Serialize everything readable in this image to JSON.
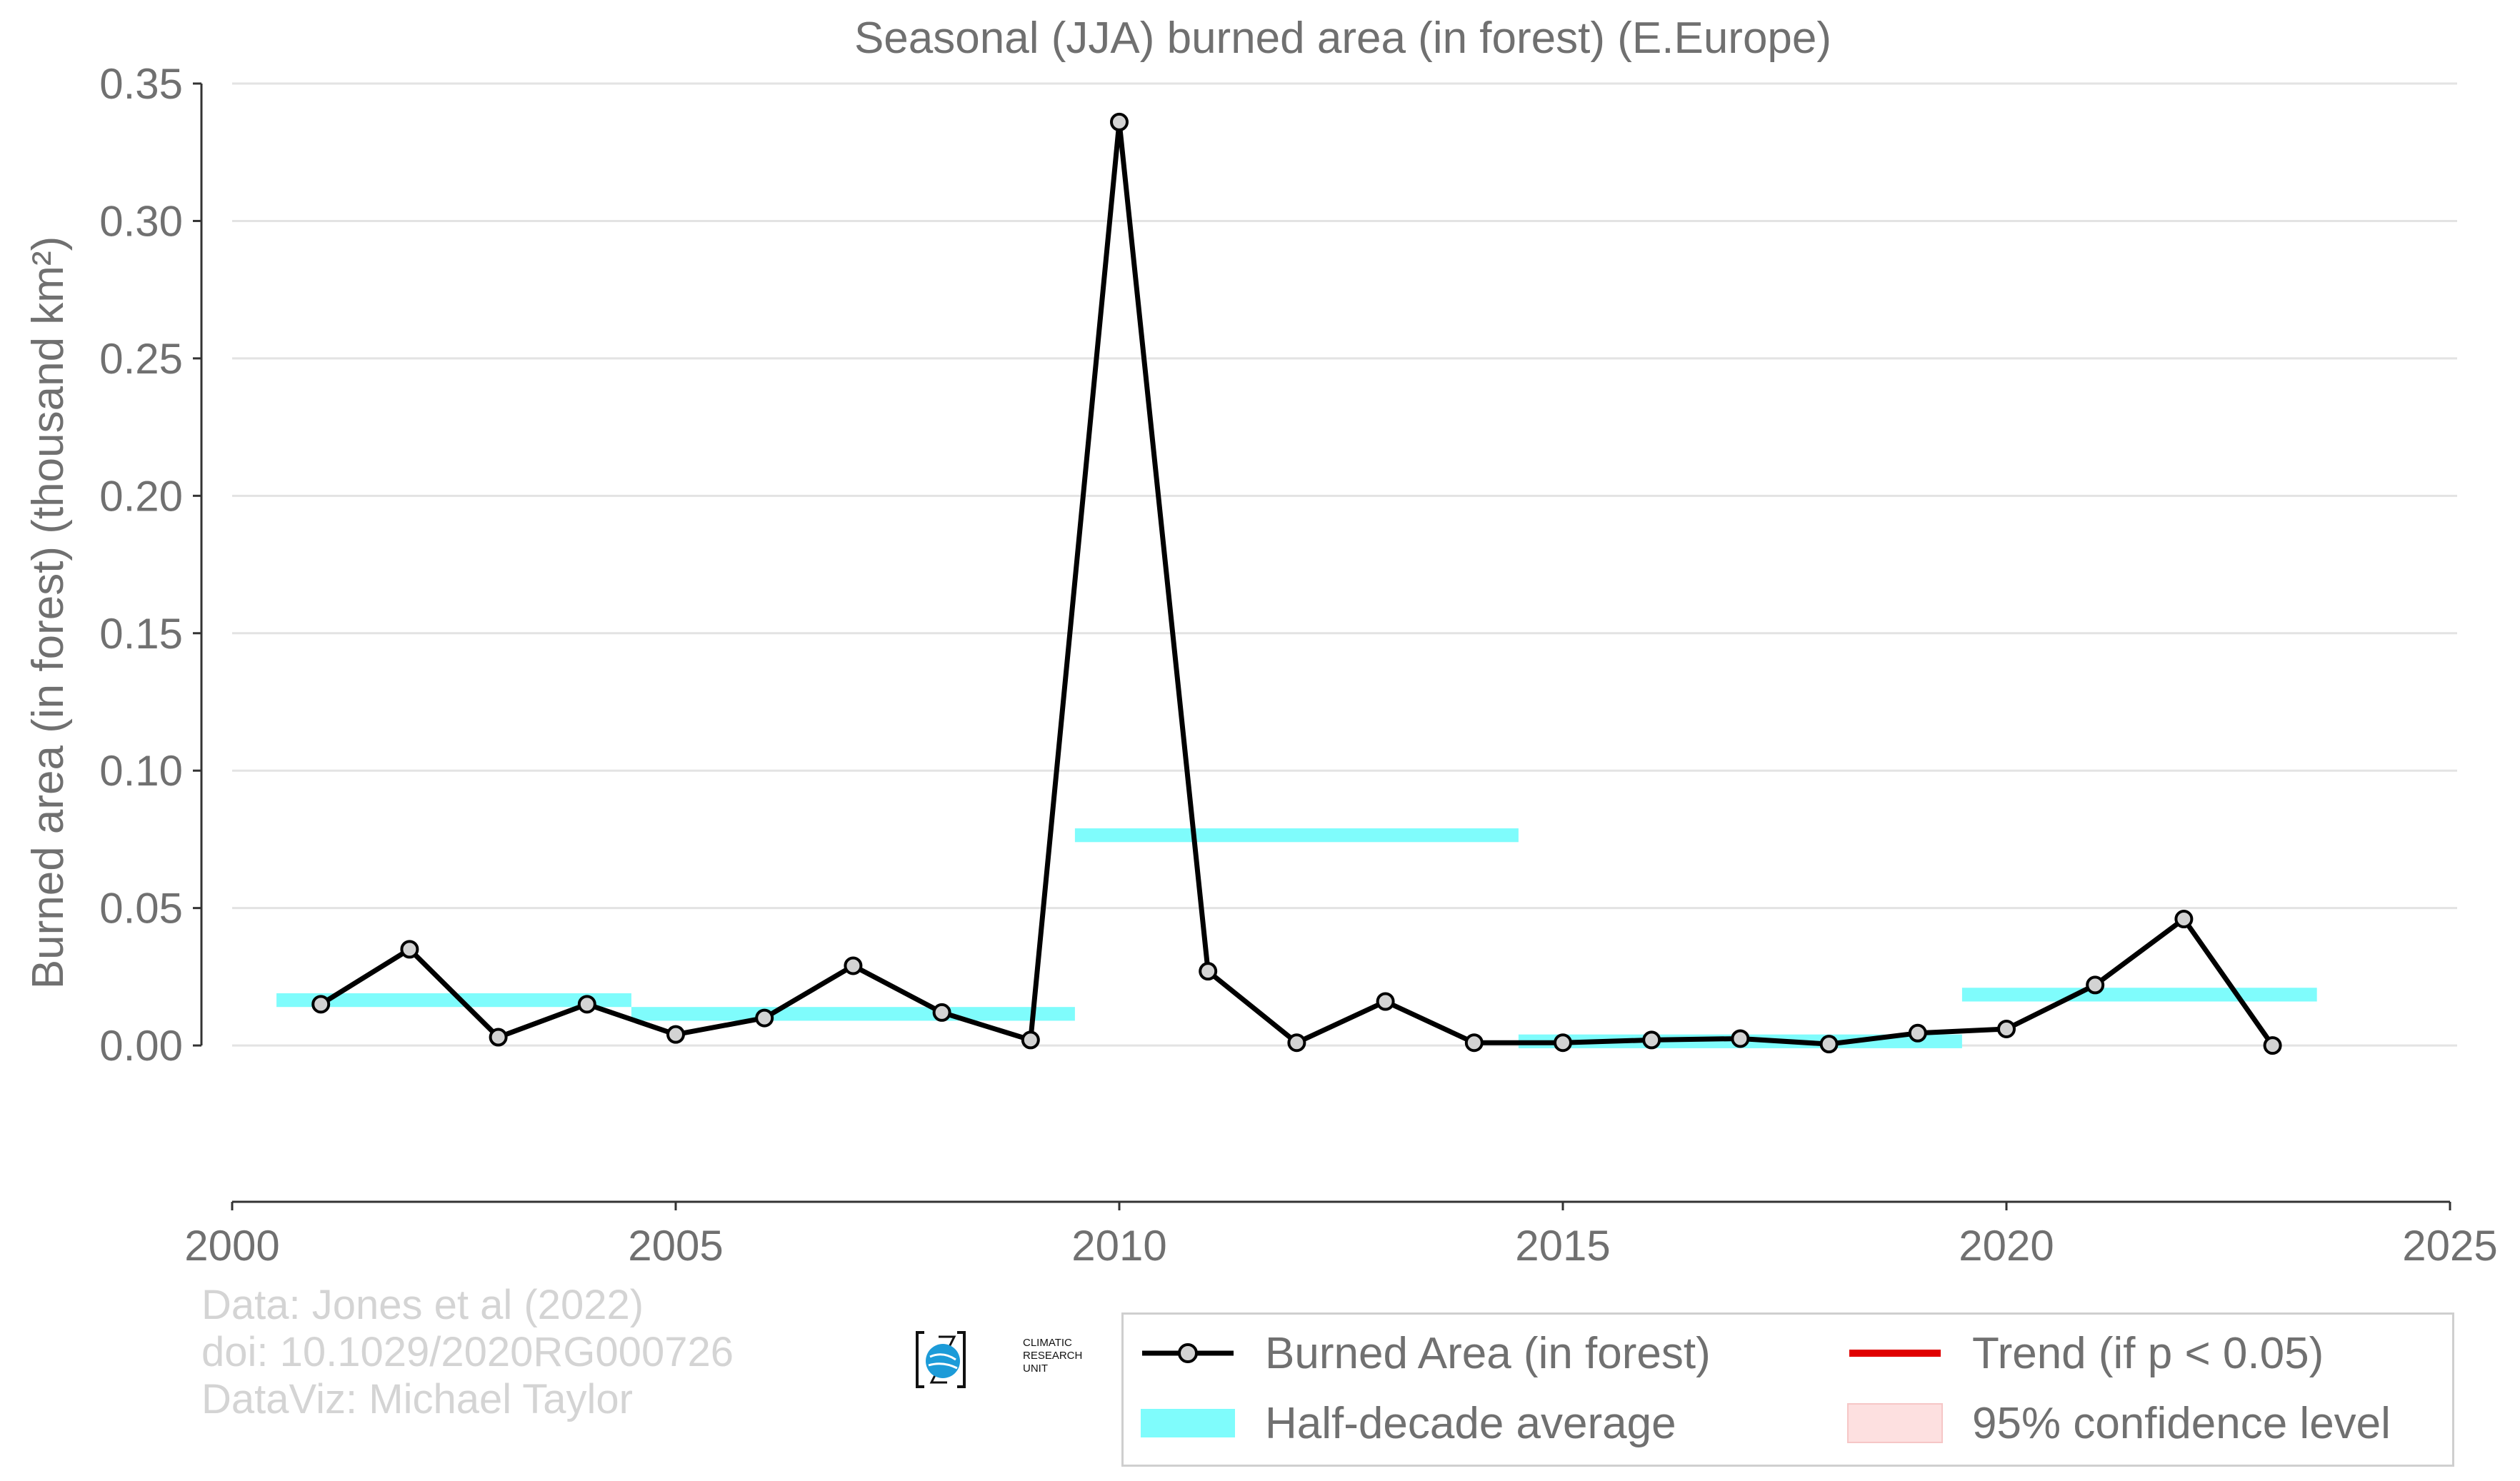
{
  "chart_data": {
    "type": "line",
    "title": "Seasonal (JJA) burned area (in forest) (E.Europe)",
    "ylabel": "Burned area (in forest) (thousand km²)",
    "xlabel": "",
    "xlim": [
      2000,
      2025
    ],
    "ylim": [
      -0.027,
      0.35
    ],
    "x_ticks": [
      2000,
      2005,
      2010,
      2015,
      2020,
      2025
    ],
    "y_ticks": [
      0.0,
      0.05,
      0.1,
      0.15,
      0.2,
      0.25,
      0.3,
      0.35
    ],
    "y_tick_labels": [
      "0.00",
      "0.05",
      "0.10",
      "0.15",
      "0.20",
      "0.25",
      "0.30",
      "0.35"
    ],
    "grid": "horizontal",
    "series": [
      {
        "name": "Burned Area (in forest)",
        "color": "#000000",
        "marker_fill": "#d3d3d3",
        "x": [
          2001,
          2002,
          2003,
          2004,
          2005,
          2006,
          2007,
          2008,
          2009,
          2010,
          2011,
          2012,
          2013,
          2014,
          2015,
          2016,
          2017,
          2018,
          2019,
          2020,
          2021,
          2022,
          2023
        ],
        "y": [
          0.015,
          0.035,
          0.003,
          0.015,
          0.004,
          0.01,
          0.029,
          0.012,
          0.002,
          0.336,
          0.027,
          0.001,
          0.016,
          0.001,
          0.001,
          0.002,
          0.0025,
          0.0005,
          0.0045,
          0.006,
          0.022,
          0.046,
          0.0
        ]
      }
    ],
    "half_decade_averages": {
      "name": "Half-decade average",
      "color": "#7ffcfc",
      "segments": [
        {
          "x_start": 2000.5,
          "x_end": 2004.5,
          "value": 0.0165
        },
        {
          "x_start": 2004.5,
          "x_end": 2009.5,
          "value": 0.0115
        },
        {
          "x_start": 2009.5,
          "x_end": 2014.5,
          "value": 0.0765
        },
        {
          "x_start": 2014.5,
          "x_end": 2019.5,
          "value": 0.0015
        },
        {
          "x_start": 2019.5,
          "x_end": 2023.5,
          "value": 0.0185
        }
      ]
    },
    "legend": {
      "position": "bottom-right",
      "entries": [
        {
          "label": "Burned Area (in forest)",
          "key": "line-marker",
          "color": "#000000"
        },
        {
          "label": "Trend (if p < 0.05)",
          "key": "line",
          "color": "#e00000"
        },
        {
          "label": "Half-decade average",
          "key": "band",
          "color": "#7ffcfc"
        },
        {
          "label": "95% confidence level",
          "key": "band",
          "color": "#fde0e0"
        }
      ]
    }
  },
  "credits": {
    "line1": "Data: Jones et al (2022)",
    "line2": "doi: 10.1029/2020RG000726",
    "line3": "DataViz: Michael Taylor"
  },
  "logo": {
    "line1": "CLIMATIC",
    "line2": "RESEARCH",
    "line3": "UNIT"
  }
}
